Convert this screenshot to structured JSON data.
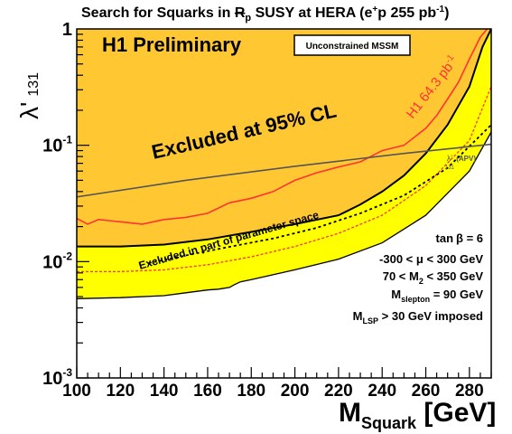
{
  "chart_data": {
    "type": "area",
    "title": {
      "prefix": "Search for Squarks in ",
      "rp_main": "R",
      "rp_sub": "p",
      "middle": " SUSY at HERA (e",
      "sup_plus": "+",
      "after_plus": "p 255 pb",
      "sup_minus1": "-1",
      "closing": ")"
    },
    "xlabel": {
      "main": "M",
      "sub": "Squark",
      "unit": " [GeV]"
    },
    "ylabel": {
      "main": "λ'",
      "sub": "131"
    },
    "xlim": [
      100,
      290
    ],
    "ylim": [
      0.001,
      1
    ],
    "yscale": "log",
    "x_ticks": [
      {
        "v": 100,
        "label": "100"
      },
      {
        "v": 120,
        "label": "120"
      },
      {
        "v": 140,
        "label": "140"
      },
      {
        "v": 160,
        "label": "160"
      },
      {
        "v": 180,
        "label": "180"
      },
      {
        "v": 200,
        "label": "200"
      },
      {
        "v": 220,
        "label": "220"
      },
      {
        "v": 240,
        "label": "240"
      },
      {
        "v": 260,
        "label": "260"
      },
      {
        "v": 280,
        "label": "280"
      }
    ],
    "y_ticks": [
      {
        "v": 1,
        "base": "1",
        "exp": ""
      },
      {
        "v": 0.1,
        "base": "10",
        "exp": "-1"
      },
      {
        "v": 0.01,
        "base": "10",
        "exp": "-2"
      },
      {
        "v": 0.001,
        "base": "10",
        "exp": "-3"
      }
    ],
    "colors": {
      "excluded_95": "#FFC833",
      "excluded_part": "#FFFF00",
      "h1_line": "#FF3333",
      "apv_line": "#555555"
    },
    "series": {
      "excluded_95_boundary": {
        "x": [
          100,
          110,
          120,
          140,
          160,
          180,
          200,
          220,
          230,
          240,
          250,
          260,
          270,
          280,
          286,
          290
        ],
        "y": [
          0.0135,
          0.0135,
          0.0135,
          0.014,
          0.0155,
          0.018,
          0.021,
          0.025,
          0.031,
          0.04,
          0.055,
          0.085,
          0.15,
          0.32,
          0.7,
          1.0
        ]
      },
      "excluded_part_boundary": {
        "x": [
          100,
          120,
          140,
          150,
          160,
          165,
          170,
          172,
          175,
          180,
          200,
          220,
          240,
          260,
          280,
          290
        ],
        "y": [
          0.0048,
          0.0049,
          0.0051,
          0.0054,
          0.0057,
          0.0058,
          0.006,
          0.0063,
          0.0067,
          0.007,
          0.0085,
          0.0105,
          0.0145,
          0.025,
          0.06,
          0.13
        ]
      },
      "dashed_red": {
        "x": [
          100,
          120,
          140,
          160,
          180,
          200,
          220,
          240,
          260,
          280,
          290
        ],
        "y": [
          0.0082,
          0.0082,
          0.0085,
          0.0094,
          0.011,
          0.0135,
          0.0175,
          0.025,
          0.045,
          0.11,
          0.32
        ]
      },
      "black_dashed": {
        "x": [
          133,
          150,
          170,
          190,
          210,
          230,
          250,
          270,
          290
        ],
        "y": [
          0.0097,
          0.0113,
          0.0134,
          0.0158,
          0.0195,
          0.026,
          0.037,
          0.064,
          0.15
        ]
      },
      "h1_line": {
        "name": "H1 64.3 pb",
        "name_sup": "-1",
        "x": [
          100,
          105,
          110,
          120,
          130,
          140,
          150,
          160,
          170,
          180,
          190,
          200,
          210,
          220,
          230,
          240,
          250,
          260,
          265,
          270,
          275,
          280,
          285,
          290
        ],
        "y": [
          0.0235,
          0.021,
          0.023,
          0.022,
          0.021,
          0.023,
          0.024,
          0.026,
          0.032,
          0.035,
          0.04,
          0.05,
          0.058,
          0.065,
          0.072,
          0.09,
          0.1,
          0.14,
          0.18,
          0.25,
          0.35,
          0.55,
          0.85,
          1.1
        ]
      },
      "apv_line": {
        "name": "λ'",
        "name_sub": "131",
        "name_suffix": " (APV)",
        "x": [
          100,
          150,
          200,
          250,
          290
        ],
        "y": [
          0.036,
          0.05,
          0.066,
          0.085,
          0.102
        ]
      }
    },
    "annotations": {
      "preliminary": "H1 Preliminary",
      "box_label": "Unconstrained MSSM",
      "excluded_95": "Excluded at 95% CL",
      "excluded_part": "Excluded in part of parameter space",
      "params": [
        {
          "main": "tan",
          "greek": "β",
          "rest": " = 6",
          "sub": ""
        },
        {
          "main": "-300 < ",
          "greek": "μ",
          "rest": "  < 300 GeV",
          "sub": ""
        },
        {
          "main": "70 < M",
          "greek": "",
          "rest": " < 350 GeV",
          "sub": "2"
        },
        {
          "main": "M",
          "greek": "",
          "rest": " = 90 GeV",
          "sub": "slepton"
        },
        {
          "main": "M",
          "greek": "",
          "rest": " > 30 GeV imposed",
          "sub": "LSP"
        }
      ]
    }
  }
}
